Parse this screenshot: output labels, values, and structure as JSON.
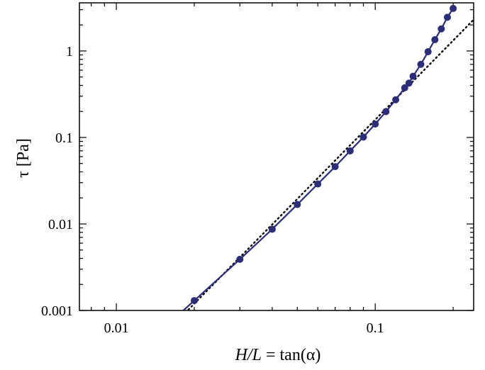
{
  "chart_data": {
    "type": "line",
    "xscale": "log",
    "yscale": "log",
    "xlim": [
      0.0072,
      0.24
    ],
    "ylim": [
      0.001,
      3.6
    ],
    "xticks_major": [
      {
        "value": 0.01,
        "label": "0.01"
      },
      {
        "value": 0.1,
        "label": "0.1"
      }
    ],
    "yticks_major": [
      {
        "value": 0.001,
        "label": "0.001"
      },
      {
        "value": 0.01,
        "label": "0.01"
      },
      {
        "value": 0.1,
        "label": "0.1"
      },
      {
        "value": 1,
        "label": "1"
      }
    ],
    "xlabel": {
      "italic": "H/L",
      "rest": " = tan(α)"
    },
    "ylabel": "τ [Pa]",
    "grid": false,
    "legend": "none",
    "colors": {
      "series": "#2b2d78",
      "reference": "#000000",
      "axes": "#000000"
    },
    "series": [
      {
        "style": "solid line with circle markers",
        "x": [
          0.02,
          0.03,
          0.04,
          0.05,
          0.06,
          0.07,
          0.08,
          0.09,
          0.1,
          0.11,
          0.12,
          0.13,
          0.135,
          0.14,
          0.15,
          0.16,
          0.17,
          0.18,
          0.19,
          0.2
        ],
        "y": [
          0.0013,
          0.0039,
          0.0087,
          0.0168,
          0.029,
          0.046,
          0.07,
          0.101,
          0.143,
          0.199,
          0.273,
          0.375,
          0.425,
          0.51,
          0.7,
          0.98,
          1.35,
          1.8,
          2.45,
          3.1
        ]
      },
      {
        "style": "dotted line",
        "x": [
          0.018,
          0.24
        ],
        "y": [
          0.00087,
          2.3
        ]
      }
    ]
  }
}
